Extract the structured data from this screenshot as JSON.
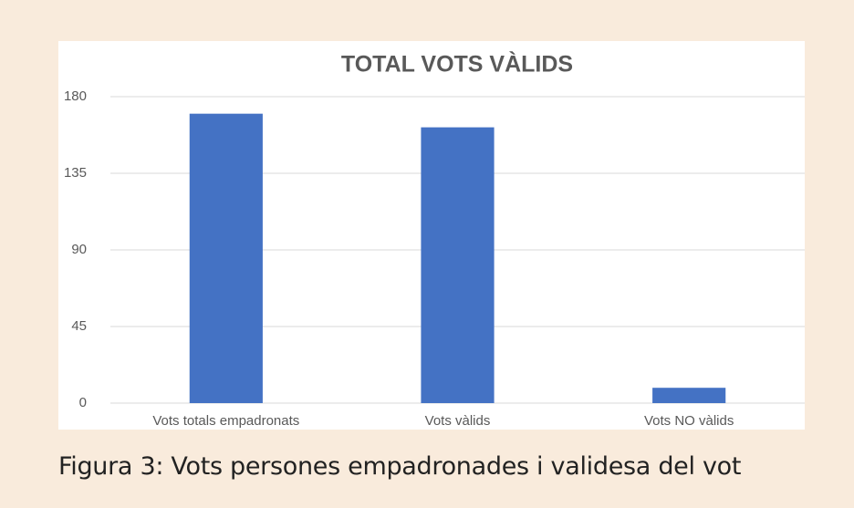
{
  "chart_data": {
    "type": "bar",
    "title": "TOTAL VOTS VÀLIDS",
    "categories": [
      "Vots totals empadronats",
      "Vots vàlids",
      "Vots NO vàlids"
    ],
    "values": [
      170,
      162,
      9
    ],
    "color": "#4472c4",
    "ylim": [
      0,
      180
    ],
    "yticks": [
      0,
      45,
      90,
      135,
      180
    ],
    "grid": true
  },
  "caption": "Figura 3: Vots persones empadronades i validesa del vot"
}
